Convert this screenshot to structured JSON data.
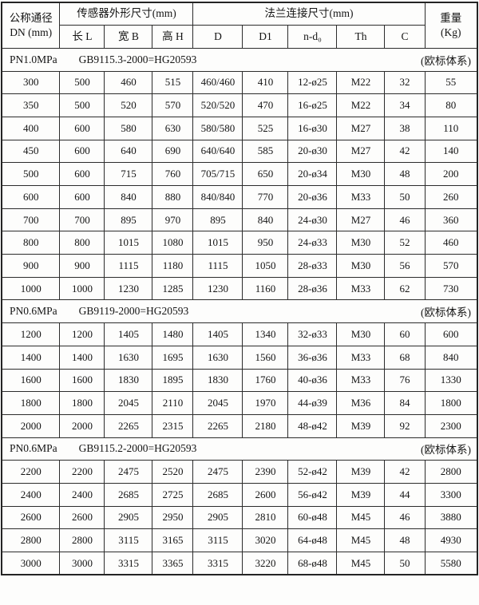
{
  "table": {
    "header": {
      "col_dn_line1": "公称通径",
      "col_dn_line2": "DN (mm)",
      "group_sensor": "传感器外形尺寸(mm)",
      "group_flange": "法兰连接尺寸(mm)",
      "col_weight_line1": "重量",
      "col_weight_line2": "(Kg)",
      "sub": [
        "长 L",
        "宽 B",
        "高 H",
        "D",
        "D1",
        "n-d₀",
        "Th",
        "C"
      ]
    },
    "sections": [
      {
        "pressure": "PN1.0MPa",
        "standard": "GB9115.3-2000=HG20593",
        "note": "(欧标体系)",
        "rows": [
          [
            "300",
            "500",
            "460",
            "515",
            "460/460",
            "410",
            "12-ø25",
            "M22",
            "32",
            "55"
          ],
          [
            "350",
            "500",
            "520",
            "570",
            "520/520",
            "470",
            "16-ø25",
            "M22",
            "34",
            "80"
          ],
          [
            "400",
            "600",
            "580",
            "630",
            "580/580",
            "525",
            "16-ø30",
            "M27",
            "38",
            "110"
          ],
          [
            "450",
            "600",
            "640",
            "690",
            "640/640",
            "585",
            "20-ø30",
            "M27",
            "42",
            "140"
          ],
          [
            "500",
            "600",
            "715",
            "760",
            "705/715",
            "650",
            "20-ø34",
            "M30",
            "48",
            "200"
          ],
          [
            "600",
            "600",
            "840",
            "880",
            "840/840",
            "770",
            "20-ø36",
            "M33",
            "50",
            "260"
          ],
          [
            "700",
            "700",
            "895",
            "970",
            "895",
            "840",
            "24-ø30",
            "M27",
            "46",
            "360"
          ],
          [
            "800",
            "800",
            "1015",
            "1080",
            "1015",
            "950",
            "24-ø33",
            "M30",
            "52",
            "460"
          ],
          [
            "900",
            "900",
            "1115",
            "1180",
            "1115",
            "1050",
            "28-ø33",
            "M30",
            "56",
            "570"
          ],
          [
            "1000",
            "1000",
            "1230",
            "1285",
            "1230",
            "1160",
            "28-ø36",
            "M33",
            "62",
            "730"
          ]
        ]
      },
      {
        "pressure": "PN0.6MPa",
        "standard": "GB9119-2000=HG20593",
        "note": "(欧标体系)",
        "rows": [
          [
            "1200",
            "1200",
            "1405",
            "1480",
            "1405",
            "1340",
            "32-ø33",
            "M30",
            "60",
            "600"
          ],
          [
            "1400",
            "1400",
            "1630",
            "1695",
            "1630",
            "1560",
            "36-ø36",
            "M33",
            "68",
            "840"
          ],
          [
            "1600",
            "1600",
            "1830",
            "1895",
            "1830",
            "1760",
            "40-ø36",
            "M33",
            "76",
            "1330"
          ],
          [
            "1800",
            "1800",
            "2045",
            "2110",
            "2045",
            "1970",
            "44-ø39",
            "M36",
            "84",
            "1800"
          ],
          [
            "2000",
            "2000",
            "2265",
            "2315",
            "2265",
            "2180",
            "48-ø42",
            "M39",
            "92",
            "2300"
          ]
        ]
      },
      {
        "pressure": "PN0.6MPa",
        "standard": "GB9115.2-2000=HG20593",
        "note": "(欧标体系)",
        "rows": [
          [
            "2200",
            "2200",
            "2475",
            "2520",
            "2475",
            "2390",
            "52-ø42",
            "M39",
            "42",
            "2800"
          ],
          [
            "2400",
            "2400",
            "2685",
            "2725",
            "2685",
            "2600",
            "56-ø42",
            "M39",
            "44",
            "3300"
          ],
          [
            "2600",
            "2600",
            "2905",
            "2950",
            "2905",
            "2810",
            "60-ø48",
            "M45",
            "46",
            "3880"
          ],
          [
            "2800",
            "2800",
            "3115",
            "3165",
            "3115",
            "3020",
            "64-ø48",
            "M45",
            "48",
            "4930"
          ],
          [
            "3000",
            "3000",
            "3315",
            "3365",
            "3315",
            "3220",
            "68-ø48",
            "M45",
            "50",
            "5580"
          ]
        ]
      }
    ]
  }
}
